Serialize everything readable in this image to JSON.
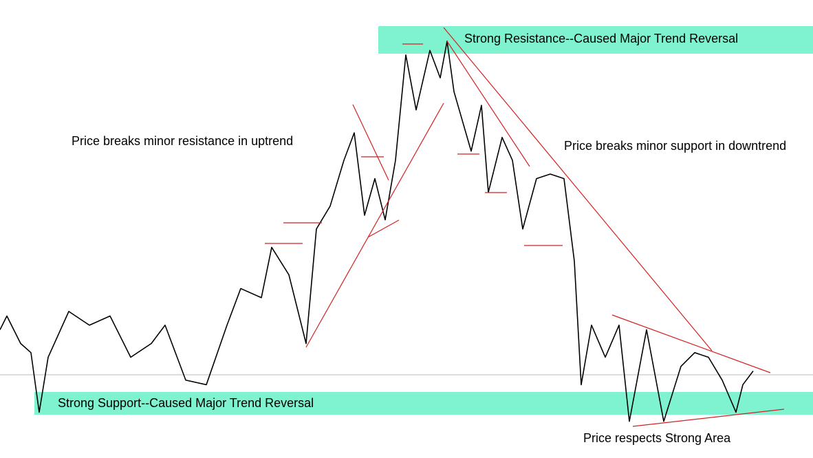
{
  "chart_data": {
    "type": "line",
    "annotations": [
      "Strong Resistance--Caused Major Trend Reversal",
      "Price breaks minor resistance in uptrend",
      "Price breaks minor support in downtrend",
      "Strong Support--Caused Major Trend Reversal",
      "Price respects Strong Area"
    ],
    "x": [
      0,
      10,
      30,
      45,
      57,
      70,
      100,
      130,
      160,
      190,
      220,
      240,
      270,
      300,
      330,
      350,
      380,
      395,
      420,
      445,
      460,
      480,
      500,
      515,
      530,
      545,
      560,
      575,
      590,
      605,
      625,
      640,
      650,
      660,
      685,
      700,
      710,
      730,
      745,
      760,
      780,
      800,
      820,
      835,
      845,
      860,
      880,
      900,
      915,
      940,
      965,
      990,
      1010,
      1030,
      1050,
      1070,
      1080,
      1095
    ],
    "series": [
      {
        "color": "#000000",
        "values": [
          28,
          31,
          25,
          23,
          10,
          22,
          32,
          29,
          31,
          22,
          25,
          29,
          17,
          16,
          29,
          37,
          35,
          46,
          40,
          25,
          50,
          55,
          65,
          71,
          53,
          61,
          52,
          65,
          88,
          76,
          89,
          83,
          91,
          80,
          67,
          77,
          58,
          70,
          65,
          50,
          61,
          62,
          61,
          43,
          16,
          29,
          22,
          29,
          8,
          28,
          8,
          20,
          23,
          22,
          17,
          10,
          16,
          19
        ]
      }
    ],
    "xlim": [
      0,
      1182
    ],
    "ylim": [
      0,
      100
    ]
  }
}
